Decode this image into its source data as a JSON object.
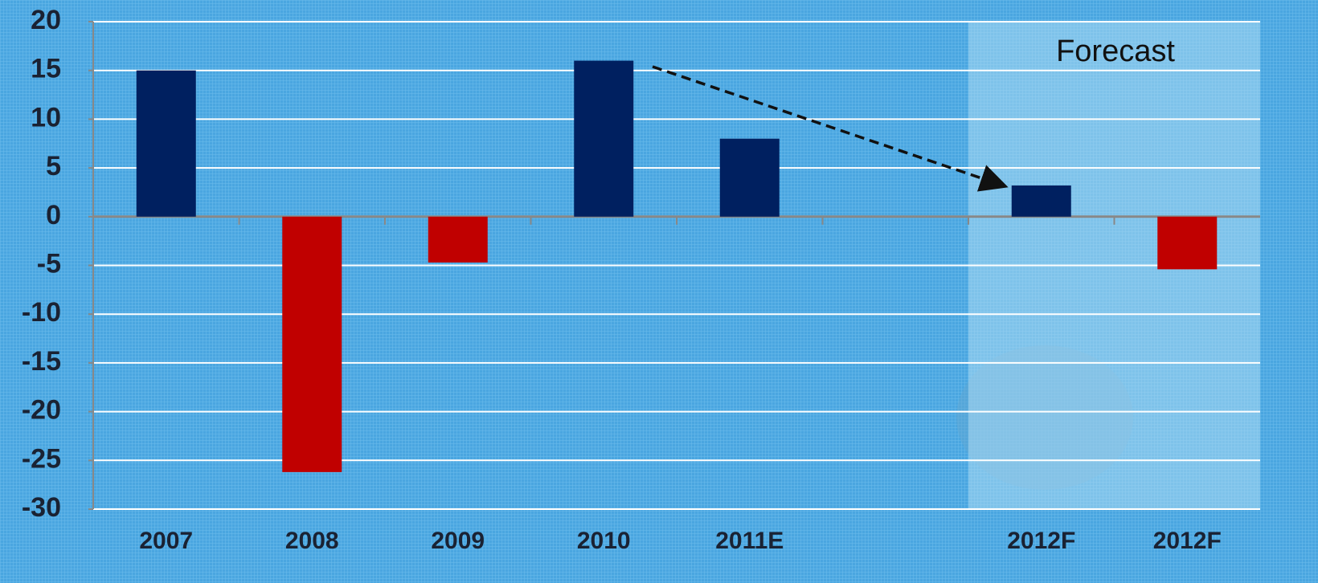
{
  "chart_data": {
    "type": "bar",
    "categories": [
      "2007",
      "2008",
      "2009",
      "2010",
      "2011E",
      null,
      "2012F",
      "2012F"
    ],
    "values": [
      15,
      -26.2,
      -4.7,
      16,
      8,
      null,
      3.2,
      -5.4
    ],
    "colors": [
      "#002060",
      "#c00000",
      "#c00000",
      "#002060",
      "#002060",
      null,
      "#002060",
      "#c00000"
    ],
    "ylim": [
      -30,
      20
    ],
    "yticks": [
      -30,
      -25,
      -20,
      -15,
      -10,
      -5,
      0,
      5,
      10,
      15,
      20
    ],
    "grid": true,
    "annotation": "Forecast"
  }
}
